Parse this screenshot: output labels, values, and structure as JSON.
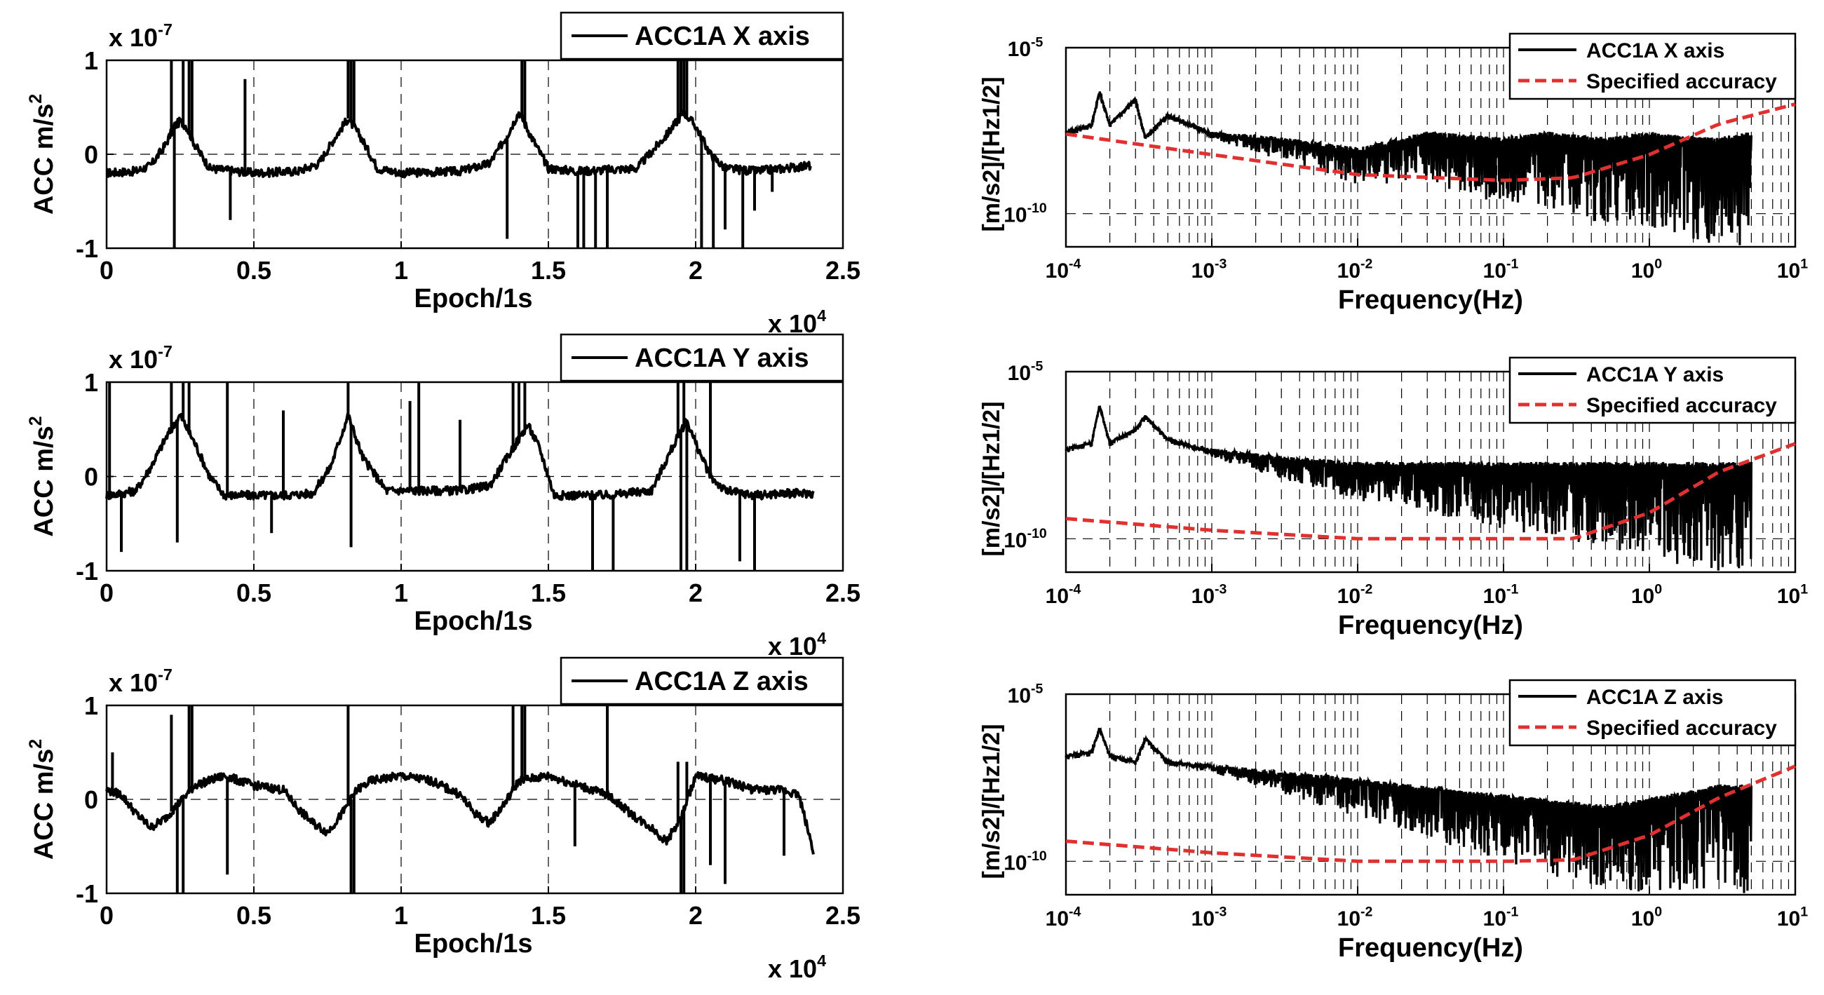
{
  "figure": {
    "x_multiplier": "x 10",
    "x_multiplier_exp": "4",
    "y_multiplier": "x 10",
    "y_multiplier_exp": "-7"
  },
  "chart_data": [
    {
      "type": "line",
      "panel": "time-x",
      "title": "",
      "xlabel": "Epoch/1s",
      "ylabel_main": "ACC m/s",
      "ylabel_sup": "2",
      "xlim": [
        0,
        2.5
      ],
      "ylim": [
        -1,
        1
      ],
      "xticks": [
        0,
        0.5,
        1,
        1.5,
        2,
        2.5
      ],
      "xtick_labels": [
        "0",
        "0.5",
        "1",
        "1.5",
        "2",
        "2.5"
      ],
      "yticks": [
        -1,
        0,
        1
      ],
      "ytick_labels": [
        "-1",
        "0",
        "1"
      ],
      "x_scale_note": "x 10^4",
      "y_scale_note": "x 10^-7",
      "legend": [
        "ACC1A X axis"
      ],
      "legend_position": "top-right",
      "series": [
        {
          "name": "ACC1A X axis",
          "color": "#000000",
          "x": [
            0,
            0.1,
            0.15,
            0.2,
            0.23,
            0.25,
            0.27,
            0.3,
            0.35,
            0.5,
            0.65,
            0.72,
            0.78,
            0.82,
            0.86,
            0.92,
            1.0,
            1.2,
            1.3,
            1.36,
            1.4,
            1.44,
            1.5,
            1.6,
            1.8,
            1.9,
            1.96,
            2.0,
            2.05,
            2.1,
            2.2,
            2.3,
            2.39
          ],
          "values": [
            -0.2,
            -0.18,
            -0.12,
            0.1,
            0.3,
            0.35,
            0.3,
            0.1,
            -0.15,
            -0.2,
            -0.18,
            -0.1,
            0.2,
            0.38,
            0.2,
            -0.15,
            -0.2,
            -0.18,
            -0.1,
            0.2,
            0.45,
            0.2,
            -0.15,
            -0.18,
            -0.15,
            0.2,
            0.45,
            0.3,
            0.0,
            -0.15,
            -0.18,
            -0.15,
            -0.12
          ]
        },
        {
          "name": "spikes",
          "color": "#000000",
          "x": [
            0.22,
            0.23,
            0.26,
            0.28,
            0.29,
            0.42,
            0.47,
            0.82,
            0.83,
            0.84,
            1.36,
            1.41,
            1.42,
            1.6,
            1.62,
            1.66,
            1.7,
            1.94,
            1.95,
            1.96,
            1.97,
            2.02,
            2.06,
            2.1,
            2.16,
            2.2,
            2.26
          ],
          "values": [
            1,
            -1,
            1,
            1,
            1,
            -0.7,
            0.8,
            1,
            1,
            1,
            -0.9,
            1,
            1,
            -1,
            -1,
            -1,
            -1,
            1,
            1,
            1,
            1,
            -1,
            -1,
            -0.8,
            -1,
            -0.6,
            -0.4
          ]
        }
      ]
    },
    {
      "type": "line",
      "panel": "time-y",
      "title": "",
      "xlabel": "Epoch/1s",
      "ylabel_main": "ACC m/s",
      "ylabel_sup": "2",
      "xlim": [
        0,
        2.5
      ],
      "ylim": [
        -1,
        1
      ],
      "xticks": [
        0,
        0.5,
        1,
        1.5,
        2,
        2.5
      ],
      "xtick_labels": [
        "0",
        "0.5",
        "1",
        "1.5",
        "2",
        "2.5"
      ],
      "yticks": [
        -1,
        0,
        1
      ],
      "ytick_labels": [
        "-1",
        "0",
        "1"
      ],
      "x_scale_note": "x 10^4",
      "y_scale_note": "x 10^-7",
      "legend": [
        "ACC1A Y axis"
      ],
      "legend_position": "top-right",
      "series": [
        {
          "name": "ACC1A Y axis",
          "color": "#000000",
          "x": [
            0,
            0.05,
            0.1,
            0.15,
            0.2,
            0.25,
            0.3,
            0.35,
            0.4,
            0.6,
            0.7,
            0.76,
            0.82,
            0.87,
            0.95,
            1.2,
            1.3,
            1.38,
            1.43,
            1.47,
            1.52,
            1.7,
            1.85,
            1.92,
            1.97,
            2.0,
            2.05,
            2.1,
            2.2,
            2.3,
            2.4
          ],
          "values": [
            -0.2,
            -0.18,
            -0.15,
            0.1,
            0.4,
            0.65,
            0.35,
            0.0,
            -0.2,
            -0.2,
            -0.18,
            0.1,
            0.65,
            0.2,
            -0.15,
            -0.15,
            -0.1,
            0.3,
            0.55,
            0.3,
            -0.2,
            -0.2,
            -0.15,
            0.3,
            0.6,
            0.35,
            0.0,
            -0.15,
            -0.2,
            -0.18,
            -0.18
          ]
        },
        {
          "name": "spikes",
          "color": "#000000",
          "x": [
            0.01,
            0.05,
            0.22,
            0.24,
            0.26,
            0.28,
            0.41,
            0.56,
            0.6,
            0.82,
            0.83,
            1.03,
            1.06,
            1.2,
            1.38,
            1.4,
            1.42,
            1.65,
            1.72,
            1.94,
            1.95,
            1.96,
            1.97,
            2.05,
            2.15,
            2.2
          ],
          "values": [
            1,
            -0.8,
            1,
            -0.7,
            1,
            1,
            1,
            -0.6,
            0.7,
            1,
            -0.75,
            0.8,
            1,
            0.6,
            1,
            1,
            1,
            -1,
            -1,
            1,
            -1,
            1,
            -1,
            1,
            -0.9,
            -1
          ]
        }
      ]
    },
    {
      "type": "line",
      "panel": "time-z",
      "title": "",
      "xlabel": "Epoch/1s",
      "ylabel_main": "ACC m/s",
      "ylabel_sup": "2",
      "xlim": [
        0,
        2.5
      ],
      "ylim": [
        -1,
        1
      ],
      "xticks": [
        0,
        0.5,
        1,
        1.5,
        2,
        2.5
      ],
      "xtick_labels": [
        "0",
        "0.5",
        "1",
        "1.5",
        "2",
        "2.5"
      ],
      "yticks": [
        -1,
        0,
        1
      ],
      "ytick_labels": [
        "-1",
        "0",
        "1"
      ],
      "x_scale_note": "x 10^4",
      "y_scale_note": "x 10^-7",
      "legend": [
        "ACC1A Z axis"
      ],
      "legend_position": "top-right",
      "series": [
        {
          "name": "ACC1A Z axis",
          "color": "#000000",
          "x": [
            0,
            0.05,
            0.1,
            0.15,
            0.2,
            0.3,
            0.4,
            0.5,
            0.6,
            0.65,
            0.7,
            0.75,
            0.8,
            0.85,
            0.9,
            1.0,
            1.1,
            1.2,
            1.25,
            1.3,
            1.35,
            1.4,
            1.5,
            1.6,
            1.7,
            1.8,
            1.85,
            1.9,
            1.95,
            2.0,
            2.1,
            2.2,
            2.3,
            2.35,
            2.4
          ],
          "values": [
            0.1,
            0.05,
            -0.15,
            -0.3,
            -0.2,
            0.15,
            0.25,
            0.15,
            0.1,
            -0.1,
            -0.25,
            -0.35,
            -0.15,
            0.1,
            0.2,
            0.25,
            0.2,
            0.05,
            -0.15,
            -0.25,
            -0.05,
            0.2,
            0.25,
            0.15,
            0.05,
            -0.2,
            -0.3,
            -0.45,
            -0.2,
            0.25,
            0.2,
            0.1,
            0.1,
            0.05,
            -0.55
          ]
        },
        {
          "name": "spikes",
          "color": "#000000",
          "x": [
            0.02,
            0.22,
            0.24,
            0.26,
            0.28,
            0.29,
            0.41,
            0.82,
            0.83,
            0.84,
            1.38,
            1.41,
            1.42,
            1.59,
            1.7,
            1.94,
            1.95,
            1.96,
            1.97,
            2.05,
            2.1,
            2.3
          ],
          "values": [
            0.5,
            0.9,
            -1,
            -1,
            1,
            1,
            -0.8,
            1,
            -1,
            -1,
            1,
            1,
            1,
            -0.5,
            1,
            0.4,
            -1,
            -1,
            0.4,
            -0.7,
            -0.9,
            -0.6
          ]
        }
      ]
    },
    {
      "type": "line",
      "panel": "psd-x",
      "title": "",
      "xlabel": "Frequency(Hz)",
      "ylabel": "[m/s2]/[Hz1/2]",
      "xscale": "log",
      "yscale": "log",
      "xlim": [
        0.0001,
        10
      ],
      "ylim": [
        1e-11,
        1e-05
      ],
      "xtick_exps": [
        "-4",
        "-3",
        "-2",
        "-1",
        "0",
        "1"
      ],
      "ytick_exps": [
        "-5",
        "-10"
      ],
      "legend": [
        "ACC1A X axis",
        "Specified accuracy"
      ],
      "legend_position": "top-right",
      "series": [
        {
          "name": "ACC1A X axis",
          "color": "#000000",
          "x": [
            0.0001,
            0.00015,
            0.00017,
            0.0002,
            0.0003,
            0.00035,
            0.0005,
            0.001,
            0.003,
            0.01,
            0.02,
            0.03,
            0.1,
            0.2,
            0.5,
            1,
            2,
            3,
            5
          ],
          "values": [
            3e-08,
            5e-08,
            5e-07,
            5e-08,
            3e-07,
            2e-08,
            1e-07,
            3e-08,
            2e-08,
            1e-08,
            2e-08,
            3e-08,
            2e-08,
            3e-08,
            2e-08,
            3e-08,
            2e-08,
            2e-08,
            3e-08
          ],
          "noise_floor": [
            1e-08,
            5e-09,
            1e-09,
            5e-10,
            3e-10,
            2e-10,
            1e-10,
            1e-10,
            1e-10,
            1e-10
          ]
        },
        {
          "name": "Specified accuracy",
          "color": "#e03030",
          "style": "dashed",
          "x": [
            0.0001,
            0.001,
            0.01,
            0.1,
            0.3,
            1,
            3,
            10
          ],
          "values": [
            2.5e-08,
            6e-09,
            1.5e-09,
            1e-09,
            1.2e-09,
            6e-09,
            5e-08,
            2e-07
          ]
        }
      ]
    },
    {
      "type": "line",
      "panel": "psd-y",
      "title": "",
      "xlabel": "Frequency(Hz)",
      "ylabel": "[m/s2]/[Hz1/2]",
      "xscale": "log",
      "yscale": "log",
      "xlim": [
        0.0001,
        10
      ],
      "ylim": [
        1e-11,
        1e-05
      ],
      "xtick_exps": [
        "-4",
        "-3",
        "-2",
        "-1",
        "0",
        "1"
      ],
      "ytick_exps": [
        "-5",
        "-10"
      ],
      "legend": [
        "ACC1A Y axis",
        "Specified accuracy"
      ],
      "legend_position": "top-right",
      "series": [
        {
          "name": "ACC1A Y axis",
          "color": "#000000",
          "x": [
            0.0001,
            0.00015,
            0.00017,
            0.0002,
            0.0003,
            0.00035,
            0.0005,
            0.001,
            0.003,
            0.01,
            0.1,
            1,
            5
          ],
          "values": [
            5e-08,
            8e-08,
            1e-06,
            8e-08,
            2e-07,
            5e-07,
            1e-07,
            5e-08,
            3e-08,
            2e-08,
            2e-08,
            2e-08,
            2e-08
          ]
        },
        {
          "name": "Specified accuracy",
          "color": "#e03030",
          "style": "dashed",
          "x": [
            0.0001,
            0.001,
            0.01,
            0.1,
            0.3,
            1,
            3,
            10
          ],
          "values": [
            4e-10,
            1.8e-10,
            1e-10,
            1e-10,
            1e-10,
            6e-10,
            1e-08,
            7e-08
          ]
        }
      ]
    },
    {
      "type": "line",
      "panel": "psd-z",
      "title": "",
      "xlabel": "Frequency(Hz)",
      "ylabel": "[m/s2]/[Hz1/2]",
      "xscale": "log",
      "yscale": "log",
      "xlim": [
        0.0001,
        10
      ],
      "ylim": [
        1e-11,
        1e-05
      ],
      "xtick_exps": [
        "-4",
        "-3",
        "-2",
        "-1",
        "0",
        "1"
      ],
      "ytick_exps": [
        "-5",
        "-10"
      ],
      "legend": [
        "ACC1A Z axis",
        "Specified accuracy"
      ],
      "legend_position": "top-right",
      "series": [
        {
          "name": "ACC1A Z axis",
          "color": "#000000",
          "x": [
            0.0001,
            0.00015,
            0.00017,
            0.0002,
            0.0003,
            0.00035,
            0.0005,
            0.001,
            0.003,
            0.01,
            0.1,
            0.5,
            1,
            3,
            5
          ],
          "values": [
            1.5e-07,
            2e-07,
            1e-06,
            1.5e-07,
            1e-07,
            5e-07,
            1e-07,
            8e-08,
            5e-08,
            3e-08,
            1e-08,
            5e-09,
            8e-09,
            2e-08,
            2e-08
          ]
        },
        {
          "name": "Specified accuracy",
          "color": "#e03030",
          "style": "dashed",
          "x": [
            0.0001,
            0.001,
            0.01,
            0.1,
            0.3,
            1,
            3,
            10
          ],
          "values": [
            4e-10,
            1.8e-10,
            1e-10,
            1e-10,
            1.1e-10,
            6e-10,
            8e-09,
            7e-08
          ]
        }
      ]
    }
  ]
}
